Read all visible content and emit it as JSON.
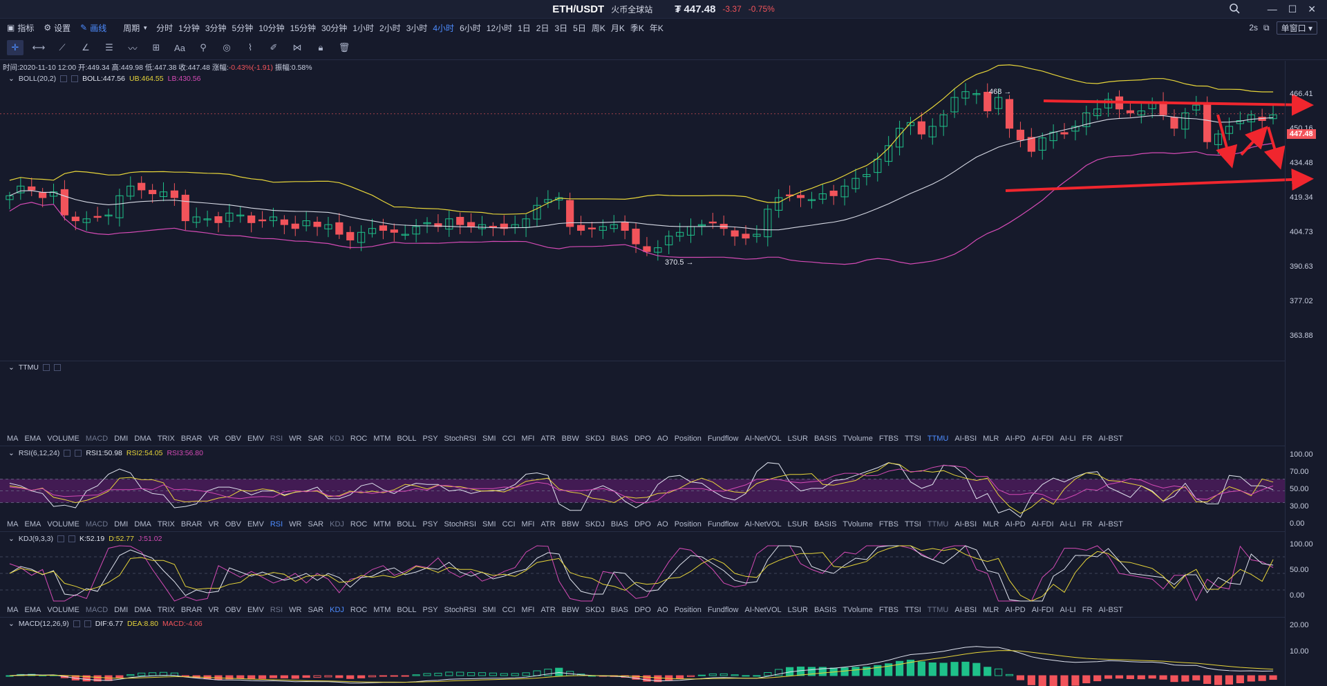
{
  "title": {
    "pair": "ETH/USDT",
    "exchange": "火币全球站",
    "price": "₮ 447.48",
    "change": "-3.37",
    "change_pct": "-0.75%"
  },
  "toolbar": {
    "indicator": "指标",
    "settings": "设置",
    "draw": "画线",
    "period": "周期",
    "timeframes": [
      "分时",
      "1分钟",
      "3分钟",
      "5分钟",
      "10分钟",
      "15分钟",
      "30分钟",
      "1小时",
      "2小时",
      "3小时",
      "4小时",
      "6小时",
      "12小时",
      "1日",
      "2日",
      "3日",
      "5日",
      "周K",
      "月K",
      "季K",
      "年K"
    ],
    "active_timeframe": "4小时",
    "refresh": "2s",
    "window": "单窗口"
  },
  "draw_tools": [
    "crosshair-icon",
    "horizontal-line-icon",
    "trend-line-icon",
    "angle-icon",
    "parallel-channel-icon",
    "wave-icon",
    "rectangle-icon",
    "text-icon",
    "brush-icon",
    "magnet-icon",
    "ruler-icon",
    "pencil-icon",
    "pattern-icon",
    "lock-icon",
    "trash-icon"
  ],
  "draw_tool_text": "Aa",
  "ohlc_line": {
    "time": "时间:2020-11-10 12:00",
    "open": "开:449.34",
    "high": "高:449.98",
    "low": "低:447.38",
    "close": "收:447.48",
    "chg_label": "涨幅:",
    "chg": "-0.43%(-1.91)",
    "amp": "振幅:0.58%"
  },
  "boll": {
    "name": "BOLL(20,2)",
    "mid": "BOLL:447.56",
    "ub": "UB:464.55",
    "lb": "LB:430.56"
  },
  "price_axis": [
    "466.41",
    "450.16",
    "434.48",
    "419.34",
    "404.73",
    "390.63",
    "377.02",
    "363.88"
  ],
  "last_price": "447.48",
  "annotations": {
    "high": "468",
    "low": "370.5"
  },
  "ttmu": {
    "name": "TTMU"
  },
  "indicator_tabs": [
    "MA",
    "EMA",
    "VOLUME",
    "MACD",
    "DMI",
    "DMA",
    "TRIX",
    "BRAR",
    "VR",
    "OBV",
    "EMV",
    "RSI",
    "WR",
    "SAR",
    "KDJ",
    "ROC",
    "MTM",
    "BOLL",
    "PSY",
    "StochRSI",
    "SMI",
    "CCI",
    "MFI",
    "ATR",
    "BBW",
    "SKDJ",
    "BIAS",
    "DPO",
    "AO",
    "Position",
    "Fundflow",
    "AI-NetVOL",
    "LSUR",
    "BASIS",
    "TVolume",
    "FTBS",
    "TTSI",
    "TTMU",
    "AI-BSI",
    "MLR",
    "AI-PD",
    "AI-FDI",
    "AI-LI",
    "FR",
    "AI-BST"
  ],
  "rsi": {
    "name": "RSI(6,12,24)",
    "r1": "RSI1:50.98",
    "r2": "RSI2:54.05",
    "r3": "RSI3:56.80",
    "axis": [
      "100.00",
      "70.00",
      "50.00",
      "30.00",
      "0.00"
    ]
  },
  "kdj": {
    "name": "KDJ(9,3,3)",
    "k": "K:52.19",
    "d": "D:52.77",
    "j": "J:51.02",
    "axis": [
      "100.00",
      "50.00",
      "0.00"
    ]
  },
  "macd": {
    "name": "MACD(12,26,9)",
    "dif": "DIF:6.77",
    "dea": "DEA:8.80",
    "macd": "MACD:-4.06",
    "axis": [
      "20.00",
      "10.00"
    ]
  },
  "colors": {
    "up": "#1fc18a",
    "down": "#f2545b",
    "boll_up": "#e8d63a",
    "boll_lb": "#d54bb6",
    "accent": "#4d8cff",
    "arrow": "#f0262e"
  }
}
